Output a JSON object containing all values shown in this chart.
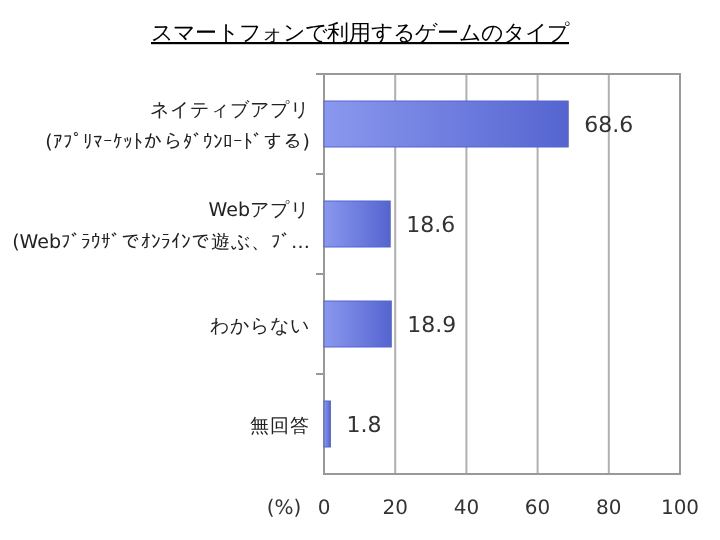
{
  "chart_data": {
    "type": "bar",
    "orientation": "horizontal",
    "title": "スマートフォンで利用するゲームのタイプ",
    "xlabel": "(%)",
    "categories": [
      "ネイティブアプリ\n(ｱﾌﾟﾘﾏｰｹｯﾄからﾀﾞｳﾝﾛｰﾄﾞする)",
      "Webアプリ\n(Webﾌﾞﾗｳｻﾞでｵﾝﾗｲﾝで遊ぶ、ﾌﾞ…",
      "わからない",
      "無回答"
    ],
    "values": [
      68.6,
      18.6,
      18.9,
      1.8
    ],
    "color": "#5565d0",
    "data_labels": true,
    "xlim": [
      0,
      100
    ],
    "xticks": [
      0,
      20,
      40,
      60,
      80,
      100
    ],
    "grid": "x"
  }
}
